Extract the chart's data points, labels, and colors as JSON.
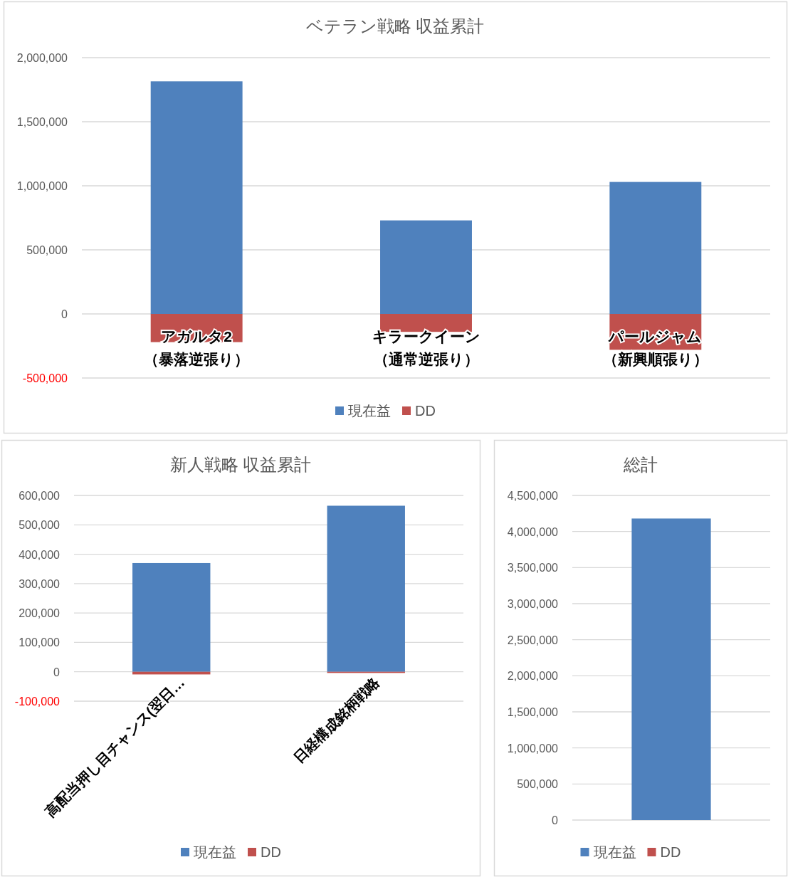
{
  "chart_data": [
    {
      "type": "bar",
      "title": "ベテラン戦略 収益累計",
      "stacked": true,
      "grid": "y",
      "legend": "bottom",
      "categories": [
        "アガルタ2（暴落逆張り）",
        "キラークイーン（通常逆張り）",
        "パールジャム（新興順張り）"
      ],
      "series": [
        {
          "name": "現在益",
          "color": "#4f81bd",
          "values": [
            1815000,
            730000,
            1030000
          ]
        },
        {
          "name": "DD",
          "color": "#c0504d",
          "values": [
            -220000,
            -140000,
            -280000
          ]
        }
      ],
      "ylim": [
        -500000,
        2000000
      ],
      "yticks": [
        {
          "value": -500000,
          "label": "-500,000"
        },
        {
          "value": 0,
          "label": "0"
        },
        {
          "value": 500000,
          "label": "500,000"
        },
        {
          "value": 1000000,
          "label": "1,000,000"
        },
        {
          "value": 1500000,
          "label": "1,500,000"
        },
        {
          "value": 2000000,
          "label": "2,000,000"
        }
      ]
    },
    {
      "type": "bar",
      "title": "新人戦略 収益累計",
      "stacked": true,
      "grid": "y",
      "legend": "bottom",
      "categories": [
        "高配当押し目チャンス(翌日…",
        "日経構成銘柄戦略"
      ],
      "series": [
        {
          "name": "現在益",
          "color": "#4f81bd",
          "values": [
            370000,
            565000
          ]
        },
        {
          "name": "DD",
          "color": "#c0504d",
          "values": [
            -9000,
            -4000
          ]
        }
      ],
      "ylim": [
        -100000,
        600000
      ],
      "yticks": [
        {
          "value": -100000,
          "label": "-100,000"
        },
        {
          "value": 0,
          "label": "0"
        },
        {
          "value": 100000,
          "label": "100,000"
        },
        {
          "value": 200000,
          "label": "200,000"
        },
        {
          "value": 300000,
          "label": "300,000"
        },
        {
          "value": 400000,
          "label": "400,000"
        },
        {
          "value": 500000,
          "label": "500,000"
        },
        {
          "value": 600000,
          "label": "600,000"
        }
      ]
    },
    {
      "type": "bar",
      "title": "総計",
      "stacked": true,
      "grid": "y",
      "legend": "bottom",
      "categories": [
        null
      ],
      "series": [
        {
          "name": "現在益",
          "color": "#4f81bd",
          "values": [
            4180000
          ]
        },
        {
          "name": "DD",
          "color": "#c0504d",
          "values": [
            null
          ]
        }
      ],
      "ylim": [
        0,
        4500000
      ],
      "yticks": [
        {
          "value": 0,
          "label": "0"
        },
        {
          "value": 500000,
          "label": "500,000"
        },
        {
          "value": 1000000,
          "label": "1,000,000"
        },
        {
          "value": 1500000,
          "label": "1,500,000"
        },
        {
          "value": 2000000,
          "label": "2,000,000"
        },
        {
          "value": 2500000,
          "label": "2,500,000"
        },
        {
          "value": 3000000,
          "label": "3,000,000"
        },
        {
          "value": 3500000,
          "label": "3,500,000"
        },
        {
          "value": 4000000,
          "label": "4,000,000"
        },
        {
          "value": 4500000,
          "label": "4,500,000"
        }
      ]
    }
  ]
}
